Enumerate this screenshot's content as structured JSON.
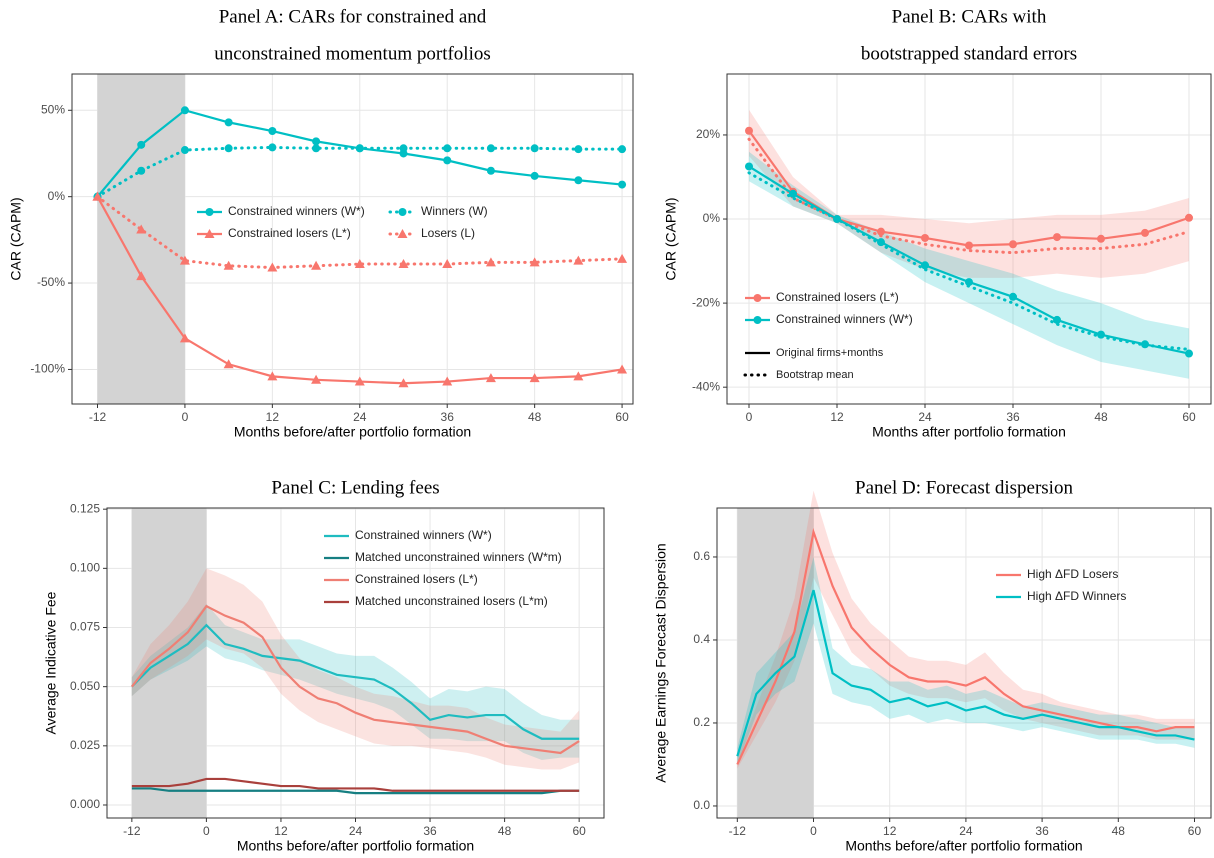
{
  "chart_data": [
    {
      "type": "line",
      "title": [
        "Panel A: CARs for constrained and",
        "unconstrained momentum portfolios"
      ],
      "xlabel": "Months before/after portfolio formation",
      "ylabel": "CAR (CAPM)",
      "x": [
        -12,
        -6,
        0,
        6,
        12,
        18,
        24,
        30,
        36,
        42,
        48,
        54,
        60
      ],
      "xlim": [
        -15.5,
        61.5
      ],
      "xticks": [
        -12,
        0,
        12,
        24,
        36,
        48,
        60
      ],
      "ylim": [
        -120,
        71
      ],
      "yticks": [
        {
          "value": -100,
          "label": "-100%"
        },
        {
          "value": -50,
          "label": "-50%"
        },
        {
          "value": 0,
          "label": "0%"
        },
        {
          "value": 50,
          "label": "50%"
        }
      ],
      "grid": true,
      "shade": [
        -12,
        0
      ],
      "legend": "center",
      "legend_columns": 2,
      "series": [
        {
          "name": "Constrained winners (W*)",
          "color": "#00bfc4",
          "marker": "circle",
          "dash": "solid",
          "values": [
            0,
            30,
            50,
            43,
            38,
            32,
            28,
            25,
            21,
            15,
            12,
            9.5,
            7
          ]
        },
        {
          "name": "Constrained losers (L*)",
          "color": "#f8766d",
          "marker": "triangle",
          "dash": "solid",
          "values": [
            0,
            -46,
            -82,
            -97,
            -104,
            -106,
            -107,
            -108,
            -107,
            -105,
            -105,
            -104,
            -100
          ]
        },
        {
          "name": "Winners (W)",
          "color": "#00bfc4",
          "marker": "circle",
          "dash": "dotted",
          "values": [
            0,
            15,
            27,
            28,
            28.5,
            28,
            28,
            28,
            28,
            28,
            28,
            27.5,
            27.5
          ]
        },
        {
          "name": "Losers (L)",
          "color": "#f8766d",
          "marker": "triangle",
          "dash": "dotted",
          "values": [
            0,
            -19,
            -37,
            -40,
            -41,
            -40,
            -39,
            -39,
            -39,
            -38,
            -38,
            -37,
            -36
          ]
        }
      ]
    },
    {
      "type": "line",
      "title": [
        "Panel B: CARs with",
        "bootstrapped standard errors"
      ],
      "xlabel": "Months after portfolio formation",
      "ylabel": "CAR (CAPM)",
      "x": [
        0,
        6,
        12,
        18,
        24,
        30,
        36,
        42,
        48,
        54,
        60
      ],
      "xlim": [
        -3,
        63
      ],
      "xticks": [
        0,
        12,
        24,
        36,
        48,
        60
      ],
      "ylim": [
        -44,
        34.5
      ],
      "yticks": [
        {
          "value": -40,
          "label": "-40%"
        },
        {
          "value": -20,
          "label": "-20%"
        },
        {
          "value": 0,
          "label": "0%"
        },
        {
          "value": 20,
          "label": "20%"
        }
      ],
      "grid": true,
      "legend": "bottom-left",
      "series": [
        {
          "name": "Constrained losers (L*)",
          "color": "#f8766d",
          "marker": "circle",
          "dash": "solid",
          "values": [
            21,
            6.5,
            0,
            -3,
            -4.5,
            -6.3,
            -6,
            -4.3,
            -4.7,
            -3.3,
            0.3
          ],
          "mean": [
            19,
            5,
            0,
            -4,
            -6,
            -7.5,
            -8,
            -7,
            -7,
            -6,
            -3
          ],
          "lower": [
            15,
            3,
            -1,
            -8,
            -12,
            -14,
            -14,
            -13,
            -14,
            -13,
            -10
          ],
          "upper": [
            26,
            10,
            1,
            1,
            0,
            -1,
            0,
            1,
            1,
            2,
            5
          ]
        },
        {
          "name": "Constrained winners (W*)",
          "color": "#00bfc4",
          "marker": "circle",
          "dash": "solid",
          "values": [
            12.5,
            6,
            0,
            -5.5,
            -11,
            -15,
            -18.5,
            -24,
            -27.5,
            -29.8,
            -32
          ],
          "mean": [
            11,
            5,
            0,
            -6,
            -12,
            -16,
            -20,
            -25,
            -28,
            -30,
            -31
          ],
          "lower": [
            9,
            3,
            -1,
            -8,
            -15,
            -20,
            -25,
            -30,
            -34,
            -36,
            -38
          ],
          "upper": [
            16,
            8,
            1,
            -3,
            -7,
            -10,
            -13,
            -17,
            -20,
            -24,
            -26
          ]
        }
      ],
      "linetype_legend": [
        {
          "name": "Original firms+months",
          "dash": "solid"
        },
        {
          "name": "Bootstrap mean",
          "dash": "dotted"
        }
      ]
    },
    {
      "type": "line",
      "title": [
        "Panel C: Lending fees"
      ],
      "xlabel": "Months before/after portfolio formation",
      "ylabel": "Average Indicative Fee",
      "x": [
        -12,
        -9,
        -6,
        -3,
        0,
        3,
        6,
        9,
        12,
        15,
        18,
        21,
        24,
        27,
        30,
        33,
        36,
        39,
        42,
        45,
        48,
        51,
        54,
        57,
        60
      ],
      "xlim": [
        -16,
        64
      ],
      "xticks": [
        -12,
        0,
        12,
        24,
        36,
        48,
        60
      ],
      "ylim": [
        -0.0055,
        0.1255
      ],
      "yticks": [
        {
          "value": 0,
          "label": "0.000"
        },
        0.025,
        {
          "value": 0.05,
          "label": "0.050"
        },
        0.075,
        {
          "value": 0.1,
          "label": "0.100"
        },
        0.125
      ],
      "grid": true,
      "shade": [
        -12,
        0
      ],
      "legend": "top-right",
      "series": [
        {
          "name": "Constrained winners (W*)",
          "color": "#1fbcc0",
          "dash": "solid",
          "values": [
            0.05,
            0.058,
            0.063,
            0.068,
            0.076,
            0.068,
            0.066,
            0.063,
            0.062,
            0.061,
            0.058,
            0.055,
            0.054,
            0.053,
            0.049,
            0.043,
            0.036,
            0.038,
            0.037,
            0.038,
            0.038,
            0.032,
            0.028,
            0.028,
            0.028
          ],
          "lower": [
            0.046,
            0.053,
            0.057,
            0.061,
            0.067,
            0.062,
            0.06,
            0.057,
            0.055,
            0.053,
            0.05,
            0.047,
            0.045,
            0.043,
            0.04,
            0.034,
            0.028,
            0.028,
            0.027,
            0.027,
            0.027,
            0.022,
            0.019,
            0.02,
            0.02
          ],
          "upper": [
            0.054,
            0.063,
            0.069,
            0.075,
            0.085,
            0.076,
            0.073,
            0.07,
            0.07,
            0.07,
            0.067,
            0.064,
            0.063,
            0.063,
            0.058,
            0.052,
            0.045,
            0.049,
            0.048,
            0.05,
            0.049,
            0.043,
            0.038,
            0.036,
            0.036
          ]
        },
        {
          "name": "Matched unconstrained winners (W*m)",
          "color": "#167f82",
          "dash": "solid",
          "values": [
            0.007,
            0.007,
            0.006,
            0.006,
            0.006,
            0.006,
            0.006,
            0.006,
            0.006,
            0.006,
            0.006,
            0.006,
            0.005,
            0.005,
            0.005,
            0.005,
            0.005,
            0.005,
            0.005,
            0.005,
            0.005,
            0.005,
            0.005,
            0.006,
            0.006
          ]
        },
        {
          "name": "Constrained losers (L*)",
          "color": "#ef7f74",
          "dash": "solid",
          "values": [
            0.05,
            0.06,
            0.066,
            0.073,
            0.084,
            0.08,
            0.077,
            0.071,
            0.058,
            0.05,
            0.045,
            0.043,
            0.039,
            0.036,
            0.035,
            0.034,
            0.033,
            0.032,
            0.031,
            0.028,
            0.025,
            0.024,
            0.023,
            0.022,
            0.027
          ],
          "lower": [
            0.046,
            0.053,
            0.058,
            0.063,
            0.07,
            0.066,
            0.064,
            0.058,
            0.047,
            0.04,
            0.035,
            0.032,
            0.029,
            0.026,
            0.025,
            0.025,
            0.024,
            0.023,
            0.022,
            0.02,
            0.017,
            0.016,
            0.015,
            0.015,
            0.018
          ],
          "upper": [
            0.054,
            0.068,
            0.076,
            0.086,
            0.1,
            0.097,
            0.093,
            0.086,
            0.072,
            0.062,
            0.057,
            0.054,
            0.05,
            0.047,
            0.046,
            0.044,
            0.042,
            0.042,
            0.041,
            0.037,
            0.034,
            0.033,
            0.032,
            0.031,
            0.04
          ]
        },
        {
          "name": "Matched unconstrained losers (L*m)",
          "color": "#a9403c",
          "dash": "solid",
          "values": [
            0.008,
            0.008,
            0.008,
            0.009,
            0.011,
            0.011,
            0.01,
            0.009,
            0.008,
            0.008,
            0.007,
            0.007,
            0.007,
            0.007,
            0.006,
            0.006,
            0.006,
            0.006,
            0.006,
            0.006,
            0.006,
            0.006,
            0.006,
            0.006,
            0.006
          ]
        }
      ]
    },
    {
      "type": "line",
      "title": [
        "Panel D: Forecast dispersion"
      ],
      "xlabel": "Months before/after portfolio formation",
      "ylabel": "Average Earnings Forecast Dispersion",
      "x": [
        -12,
        -9,
        -6,
        -3,
        0,
        3,
        6,
        9,
        12,
        15,
        18,
        21,
        24,
        27,
        30,
        33,
        36,
        39,
        42,
        45,
        48,
        51,
        54,
        57,
        60
      ],
      "xlim": [
        -15.2,
        62.6
      ],
      "xticks": [
        -12,
        0,
        12,
        24,
        36,
        48,
        60
      ],
      "ylim": [
        -0.029,
        0.718
      ],
      "yticks": [
        {
          "value": 0,
          "label": "0.0"
        },
        0.2,
        0.4,
        0.6
      ],
      "grid": true,
      "shade": [
        -12,
        0
      ],
      "legend": "right",
      "series": [
        {
          "name": "High ΔFD Losers",
          "color": "#f8766d",
          "dash": "solid",
          "values": [
            0.1,
            0.2,
            0.3,
            0.42,
            0.66,
            0.53,
            0.43,
            0.38,
            0.34,
            0.31,
            0.3,
            0.3,
            0.29,
            0.31,
            0.27,
            0.24,
            0.23,
            0.22,
            0.21,
            0.2,
            0.19,
            0.19,
            0.18,
            0.19,
            0.19
          ],
          "lower": [
            0.09,
            0.17,
            0.25,
            0.35,
            0.55,
            0.46,
            0.37,
            0.33,
            0.29,
            0.27,
            0.26,
            0.26,
            0.25,
            0.26,
            0.23,
            0.21,
            0.2,
            0.19,
            0.18,
            0.17,
            0.17,
            0.17,
            0.16,
            0.16,
            0.16
          ],
          "upper": [
            0.12,
            0.24,
            0.36,
            0.5,
            0.76,
            0.61,
            0.5,
            0.44,
            0.4,
            0.36,
            0.35,
            0.35,
            0.34,
            0.37,
            0.32,
            0.28,
            0.27,
            0.25,
            0.24,
            0.23,
            0.22,
            0.22,
            0.21,
            0.21,
            0.21
          ]
        },
        {
          "name": "High ΔFD Winners",
          "color": "#00bfc4",
          "dash": "solid",
          "values": [
            0.12,
            0.27,
            0.32,
            0.36,
            0.52,
            0.32,
            0.29,
            0.28,
            0.25,
            0.26,
            0.24,
            0.25,
            0.23,
            0.24,
            0.22,
            0.21,
            0.22,
            0.21,
            0.2,
            0.19,
            0.19,
            0.18,
            0.17,
            0.17,
            0.16
          ],
          "lower": [
            0.1,
            0.22,
            0.27,
            0.3,
            0.44,
            0.27,
            0.25,
            0.24,
            0.21,
            0.22,
            0.2,
            0.21,
            0.2,
            0.2,
            0.19,
            0.18,
            0.19,
            0.18,
            0.17,
            0.16,
            0.16,
            0.16,
            0.15,
            0.15,
            0.14
          ],
          "upper": [
            0.14,
            0.32,
            0.37,
            0.42,
            0.6,
            0.38,
            0.34,
            0.33,
            0.3,
            0.3,
            0.28,
            0.29,
            0.27,
            0.28,
            0.26,
            0.24,
            0.25,
            0.24,
            0.23,
            0.22,
            0.22,
            0.21,
            0.2,
            0.19,
            0.19
          ]
        }
      ]
    }
  ]
}
